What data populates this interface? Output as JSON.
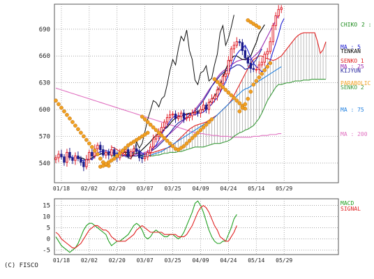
{
  "copyright": "(C) FISCO",
  "colors": {
    "price_up": "#e0202a",
    "price_down": "#1a1a8a",
    "chikou": "#111111",
    "chikou_label": "#1a8a1a",
    "ma5": "#1a1ad0",
    "tenkan": "#000000",
    "senko1": "#e02020",
    "ma25": "#9a2ab0",
    "kijun": "#1a1a9a",
    "parabolic": "#f0a020",
    "senko2": "#3a9a3a",
    "ma75": "#2080e0",
    "ma200": "#e070c0",
    "cloud": "#909090",
    "macd": "#20a020",
    "signal": "#e02020",
    "grid": "#888888"
  },
  "chart_data": [
    {
      "type": "line",
      "title": "",
      "grid": true,
      "xticks": [
        "01/18",
        "02/02",
        "02/20",
        "03/07",
        "03/25",
        "04/09",
        "04/24",
        "05/14",
        "05/29"
      ],
      "xtick_index": [
        2,
        12,
        22,
        32,
        42,
        52,
        62,
        72,
        82
      ],
      "n_points": 102,
      "yticks": [
        540,
        570,
        600,
        630,
        660,
        690
      ],
      "ylim": [
        518,
        718
      ],
      "legend": [
        {
          "label": "CHIKO",
          "color_key": "chikou_label",
          "suffix": "2 : 2"
        },
        {
          "label": "MA : 5",
          "color_key": "ma5"
        },
        {
          "label": "TENKAN",
          "color_key": "tenkan"
        },
        {
          "label": "SENKO 1",
          "color_key": "senko1"
        },
        {
          "label": "MA : 25",
          "color_key": "ma25"
        },
        {
          "label": "KIJYUN",
          "color_key": "kijun"
        },
        {
          "label": "PARABOLIC",
          "color_key": "parabolic"
        },
        {
          "label": "SENKO 2",
          "color_key": "senko2"
        },
        {
          "label": "MA : 75",
          "color_key": "ma75"
        },
        {
          "label": "MA : 200",
          "color_key": "ma200"
        }
      ],
      "close": [
        546,
        550,
        547,
        541,
        552,
        546,
        543,
        548,
        545,
        541,
        536,
        544,
        552,
        548,
        556,
        560,
        555,
        549,
        552,
        549,
        555,
        549,
        546,
        551,
        553,
        555,
        548,
        553,
        556,
        553,
        546,
        545,
        547,
        552,
        558,
        567,
        570,
        575,
        580,
        586,
        591,
        594,
        595,
        590,
        592,
        596,
        590,
        591,
        593,
        596,
        597,
        596,
        600,
        605,
        600,
        608,
        612,
        615,
        622,
        629,
        637,
        640,
        655,
        668,
        672,
        676,
        675,
        666,
        658,
        652,
        646,
        645,
        645,
        650,
        653,
        662,
        665,
        676,
        694,
        705,
        712,
        714
      ],
      "series": [
        {
          "key": "chikou",
          "name": "CHIKO",
          "start": 23,
          "values": [
            547,
            556,
            552,
            546,
            545,
            551,
            564,
            557,
            562,
            575,
            589,
            599,
            610,
            608,
            603,
            612,
            615,
            628,
            644,
            656,
            650,
            668,
            682,
            677,
            689,
            666,
            656,
            633,
            628,
            641,
            643,
            649,
            632,
            635,
            650,
            662,
            686,
            694,
            672,
            680,
            692,
            706
          ]
        },
        {
          "key": "ma5",
          "name": "MA : 5",
          "start": 4,
          "values": [
            547,
            548,
            546,
            546,
            546,
            544,
            542,
            544,
            545,
            544,
            547,
            551,
            553,
            553,
            554,
            553,
            552,
            551,
            551,
            550,
            549,
            548,
            549,
            550,
            553,
            554,
            554,
            551,
            550,
            551,
            553,
            557,
            560,
            566,
            572,
            578,
            582,
            587,
            591,
            593,
            593,
            593,
            594,
            594,
            595,
            595,
            594,
            596,
            596,
            597,
            600,
            603,
            606,
            610,
            613,
            619,
            625,
            631,
            639,
            648,
            656,
            662,
            666,
            668,
            672,
            666,
            658,
            652,
            648,
            646,
            642,
            645,
            650,
            655,
            665,
            674,
            684,
            696,
            702
          ]
        },
        {
          "key": "tenkan",
          "name": "TENKAN",
          "start": 8,
          "values": [
            547,
            546,
            545,
            543,
            544,
            546,
            548,
            549,
            550,
            551,
            551,
            552,
            552,
            551,
            551,
            551,
            552,
            552,
            552,
            551,
            551,
            551,
            552,
            555,
            558,
            561,
            564,
            568,
            571,
            573,
            575,
            578,
            580,
            584,
            588,
            590,
            592,
            593,
            594,
            595,
            596,
            596,
            597,
            598,
            599,
            600,
            603,
            607,
            611,
            615,
            620,
            627,
            636,
            645,
            652,
            657,
            660,
            660,
            658,
            656,
            656,
            658,
            660,
            668,
            675,
            685,
            690,
            695
          ]
        },
        {
          "key": "kijun",
          "name": "KIJYUN",
          "start": 25,
          "values": [
            547,
            547,
            548,
            548,
            548,
            549,
            549,
            550,
            551,
            553,
            555,
            557,
            560,
            563,
            566,
            570,
            574,
            578,
            582,
            585,
            587,
            589,
            591,
            593,
            595,
            598,
            602,
            606,
            610,
            615,
            620,
            626,
            630,
            634,
            638,
            641,
            643,
            645,
            646,
            648,
            650,
            650,
            648,
            645,
            646,
            648,
            652,
            656,
            662,
            668
          ]
        },
        {
          "key": "ma25",
          "name": "MA : 25",
          "start": 24,
          "values": [
            548,
            548,
            549,
            549,
            549,
            550,
            550,
            551,
            552,
            553,
            555,
            557,
            559,
            562,
            565,
            568,
            571,
            573,
            576,
            579,
            582,
            585,
            588,
            590,
            593,
            596,
            600,
            604,
            608,
            612,
            617,
            622,
            626,
            631,
            636,
            640,
            643,
            645,
            647,
            650,
            652,
            654,
            655,
            656,
            656,
            656,
            656,
            659,
            662,
            665,
            670,
            676,
            682,
            688,
            694,
            700,
            706
          ]
        },
        {
          "key": "ma75",
          "name": "MA : 75",
          "start": 30,
          "values": [
            546,
            547,
            548,
            548,
            549,
            550,
            551,
            552,
            553,
            555,
            557,
            559,
            561,
            563,
            565,
            567,
            569,
            571,
            573,
            575,
            577,
            579,
            581,
            583,
            585,
            587,
            589,
            591,
            594,
            597,
            600,
            603,
            606,
            609,
            612,
            615,
            618,
            621,
            623,
            624,
            626,
            628,
            630,
            632,
            634,
            636,
            638,
            640,
            642,
            644,
            646,
            648
          ]
        },
        {
          "key": "ma200",
          "name": "MA : 200",
          "start": 0,
          "values": [
            624,
            623,
            622,
            621,
            620,
            619,
            618,
            617,
            616,
            615,
            614,
            613,
            612,
            611,
            610,
            609,
            608,
            607,
            606,
            605,
            604,
            603,
            602,
            601,
            600,
            599,
            598,
            597,
            596,
            595,
            594,
            593,
            592,
            591,
            590,
            589,
            588,
            587,
            586,
            585,
            584,
            583,
            582,
            581,
            580,
            579,
            578,
            577,
            576,
            575,
            574,
            574,
            573,
            573,
            572,
            572,
            571,
            571,
            571,
            570,
            570,
            570,
            570,
            569,
            569,
            569,
            569,
            569,
            569,
            569,
            569,
            570,
            570,
            570,
            571,
            571,
            571,
            572,
            572,
            572,
            573,
            573
          ]
        },
        {
          "key": "senko1",
          "name": "SENKO 1",
          "start": 20,
          "values": [
            558,
            557,
            555,
            553,
            551,
            549,
            549,
            548,
            548,
            548,
            549,
            549,
            550,
            550,
            551,
            552,
            553,
            554,
            555,
            556,
            557,
            558,
            560,
            563,
            566,
            569,
            572,
            575,
            578,
            580,
            582,
            583,
            584,
            585,
            586,
            588,
            590,
            592,
            594,
            597,
            600,
            603,
            606,
            610,
            616,
            622,
            628,
            634,
            640,
            646,
            652,
            656,
            658,
            660,
            660,
            658,
            657,
            656,
            655,
            656,
            658,
            660,
            664,
            668,
            672,
            676,
            680,
            683,
            685,
            686,
            686,
            686,
            686,
            686,
            676,
            663,
            667,
            676
          ]
        },
        {
          "key": "senko2",
          "name": "SENKO 2",
          "start": 20,
          "values": [
            548,
            548,
            548,
            548,
            548,
            548,
            548,
            548,
            548,
            548,
            548,
            548,
            548,
            548,
            548,
            548,
            549,
            549,
            550,
            551,
            551,
            552,
            552,
            552,
            553,
            553,
            554,
            555,
            556,
            557,
            558,
            558,
            558,
            558,
            559,
            560,
            561,
            562,
            562,
            562,
            563,
            564,
            565,
            567,
            570,
            572,
            574,
            575,
            577,
            578,
            580,
            582,
            586,
            590,
            596,
            603,
            610,
            615,
            620,
            625,
            628,
            628,
            629,
            630,
            630,
            631,
            632,
            632,
            632,
            633,
            633,
            633,
            634,
            634,
            634,
            634,
            634,
            634
          ]
        }
      ],
      "parabolic": [
        {
          "start": 0,
          "values": [
            610,
            606,
            602,
            598,
            594,
            590,
            586,
            582,
            578,
            574,
            570,
            566,
            562,
            558,
            554,
            550,
            545,
            541,
            538,
            537
          ]
        },
        {
          "start": 16,
          "values": [
            536,
            537,
            539,
            541,
            543,
            545,
            548,
            551,
            554,
            557,
            560,
            562,
            564,
            566,
            568,
            570,
            572,
            574
          ]
        },
        {
          "start": 31,
          "values": [
            592,
            589,
            586,
            583,
            580,
            577,
            574,
            571,
            568,
            565,
            562,
            559,
            556
          ]
        },
        {
          "start": 44,
          "values": [
            555,
            557,
            559,
            562,
            565,
            568,
            571,
            574,
            577,
            580,
            583,
            586,
            589
          ]
        },
        {
          "start": 57,
          "values": [
            634,
            631,
            628,
            625,
            622,
            619,
            616,
            613,
            610,
            607,
            604,
            601
          ]
        },
        {
          "start": 66,
          "values": [
            598,
            602,
            606,
            612,
            620,
            628
          ]
        },
        {
          "start": 69,
          "values": [
            700,
            698,
            696,
            694,
            692
          ]
        },
        {
          "start": 72,
          "values": [
            632,
            636,
            640,
            644,
            648,
            652
          ]
        }
      ]
    },
    {
      "type": "line",
      "title": "",
      "grid": true,
      "xticks": [
        "01/18",
        "02/02",
        "02/20",
        "03/07",
        "03/25",
        "04/09",
        "04/24",
        "05/14",
        "05/29"
      ],
      "yticks": [
        -5,
        0,
        5,
        10,
        15
      ],
      "ylim": [
        -7,
        18
      ],
      "legend": [
        {
          "label": "MACD",
          "color_key": "macd"
        },
        {
          "label": "SIGNAL",
          "color_key": "signal"
        }
      ],
      "series": [
        {
          "key": "macd",
          "name": "MACD",
          "start": 0,
          "values": [
            1,
            -1,
            -3,
            -4,
            -5,
            -6,
            -5,
            -4,
            -2,
            1,
            4,
            6,
            7,
            7,
            6,
            5,
            4,
            3,
            2,
            -1,
            -3,
            -2,
            -1,
            -1,
            0,
            1,
            2,
            4,
            6,
            7,
            6,
            4,
            1,
            0,
            1,
            3,
            4,
            3,
            2,
            1,
            1,
            2,
            2,
            1,
            0,
            1,
            3,
            6,
            9,
            12,
            16,
            17,
            15,
            12,
            8,
            4,
            1,
            -1,
            -2,
            -2,
            -1,
            -1,
            2,
            5,
            9,
            11
          ]
        },
        {
          "key": "signal",
          "name": "SIGNAL",
          "start": 0,
          "values": [
            3,
            2,
            0,
            -1,
            -2,
            -3,
            -4,
            -4,
            -3,
            -2,
            0,
            2,
            4,
            5,
            6,
            6,
            5,
            4,
            4,
            3,
            1,
            0,
            -1,
            -1,
            -1,
            -1,
            0,
            1,
            2,
            4,
            5,
            6,
            5,
            4,
            3,
            3,
            3,
            3,
            3,
            2,
            2,
            2,
            2,
            2,
            1,
            1,
            1,
            2,
            4,
            6,
            9,
            12,
            14,
            15,
            14,
            12,
            9,
            6,
            4,
            1,
            0,
            -1,
            -1,
            1,
            3,
            6
          ]
        }
      ]
    }
  ]
}
